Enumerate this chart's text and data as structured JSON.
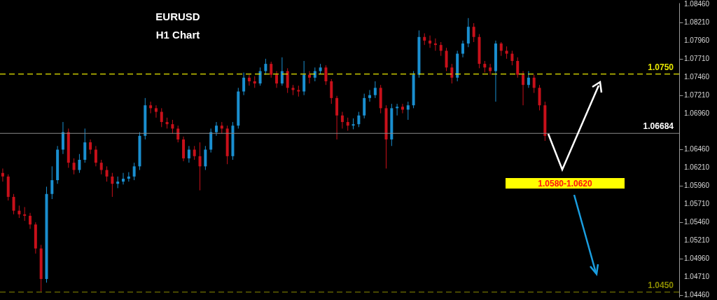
{
  "chart_data": {
    "type": "candlestick",
    "title": "EURUSD",
    "subtitle": "H1 Chart",
    "categories": [
      null,
      null,
      null,
      null,
      null,
      null,
      null,
      null,
      null,
      null,
      null,
      null,
      null,
      null,
      null,
      null,
      null,
      null,
      null,
      null,
      null,
      null,
      null,
      null,
      null,
      null,
      null,
      null,
      null,
      null,
      null,
      null,
      null,
      null,
      null,
      null,
      null,
      null,
      null,
      null,
      null,
      null,
      null,
      null,
      null,
      null,
      null,
      null,
      null,
      null,
      null,
      null,
      null,
      null,
      null,
      null,
      null,
      null,
      null,
      null,
      null,
      null,
      null,
      null,
      null,
      null,
      null,
      null,
      null,
      null,
      null,
      null,
      null,
      null,
      null,
      null,
      null,
      null,
      null,
      null,
      null,
      null,
      null,
      null,
      null,
      null,
      null,
      null,
      null,
      null,
      null,
      null,
      null,
      null,
      null,
      null,
      null,
      null,
      null,
      null,
      null,
      null,
      null,
      null,
      null,
      null,
      null,
      null,
      null,
      null,
      null,
      null,
      null,
      null,
      null,
      null,
      null,
      null,
      null,
      null,
      null,
      null,
      null,
      null
    ],
    "ohlc": [
      [
        1.0614,
        1.062,
        1.0602,
        1.0609
      ],
      [
        1.0609,
        1.0612,
        1.0576,
        1.0581
      ],
      [
        1.0581,
        1.0585,
        1.0557,
        1.0562
      ],
      [
        1.0562,
        1.0569,
        1.0552,
        1.0557
      ],
      [
        1.0557,
        1.0567,
        1.0548,
        1.0555
      ],
      [
        1.0555,
        1.0559,
        1.0537,
        1.0543
      ],
      [
        1.0543,
        1.0546,
        1.0503,
        1.051
      ],
      [
        1.051,
        1.0515,
        1.0451,
        1.0468
      ],
      [
        1.0468,
        1.0595,
        1.0463,
        1.0585
      ],
      [
        1.0585,
        1.0623,
        1.0578,
        1.0604
      ],
      [
        1.0604,
        1.0651,
        1.0599,
        1.0646
      ],
      [
        1.0646,
        1.0684,
        1.064,
        1.067
      ],
      [
        1.067,
        1.0675,
        1.0621,
        1.0628
      ],
      [
        1.0628,
        1.0634,
        1.0612,
        1.0618
      ],
      [
        1.0618,
        1.064,
        1.0614,
        1.0632
      ],
      [
        1.0632,
        1.0675,
        1.0628,
        1.0656
      ],
      [
        1.0656,
        1.066,
        1.064,
        1.0646
      ],
      [
        1.0646,
        1.0651,
        1.0623,
        1.0628
      ],
      [
        1.0628,
        1.0632,
        1.0612,
        1.0618
      ],
      [
        1.0618,
        1.0623,
        1.0602,
        1.0609
      ],
      [
        1.0609,
        1.0614,
        1.0581,
        1.0599
      ],
      [
        1.0599,
        1.0609,
        1.0593,
        1.0602
      ],
      [
        1.0602,
        1.0614,
        1.0598,
        1.0606
      ],
      [
        1.0606,
        1.0615,
        1.0602,
        1.0609
      ],
      [
        1.0609,
        1.0628,
        1.0604,
        1.0623
      ],
      [
        1.0623,
        1.067,
        1.0618,
        1.0665
      ],
      [
        1.0665,
        1.0717,
        1.066,
        1.0707
      ],
      [
        1.0707,
        1.0712,
        1.0696,
        1.0703
      ],
      [
        1.0703,
        1.0707,
        1.069,
        1.0698
      ],
      [
        1.0698,
        1.0703,
        1.0677,
        1.0684
      ],
      [
        1.0684,
        1.069,
        1.0675,
        1.0681
      ],
      [
        1.0681,
        1.0687,
        1.0668,
        1.0675
      ],
      [
        1.0675,
        1.0679,
        1.0656,
        1.066
      ],
      [
        1.066,
        1.0664,
        1.063,
        1.0634
      ],
      [
        1.0634,
        1.0651,
        1.0628,
        1.0646
      ],
      [
        1.0646,
        1.0651,
        1.0632,
        1.0637
      ],
      [
        1.0637,
        1.0656,
        1.059,
        1.0623
      ],
      [
        1.0623,
        1.0651,
        1.0618,
        1.0646
      ],
      [
        1.0646,
        1.0675,
        1.0642,
        1.067
      ],
      [
        1.067,
        1.0684,
        1.0665,
        1.0679
      ],
      [
        1.0679,
        1.0684,
        1.0668,
        1.0675
      ],
      [
        1.0675,
        1.0679,
        1.0626,
        1.0637
      ],
      [
        1.0637,
        1.0684,
        1.0632,
        1.0679
      ],
      [
        1.0679,
        1.0731,
        1.0675,
        1.0726
      ],
      [
        1.0726,
        1.0752,
        1.0721,
        1.0745
      ],
      [
        1.0745,
        1.0749,
        1.0734,
        1.074
      ],
      [
        1.074,
        1.0747,
        1.0731,
        1.0737
      ],
      [
        1.0737,
        1.0759,
        1.0734,
        1.0754
      ],
      [
        1.0754,
        1.0771,
        1.0749,
        1.0764
      ],
      [
        1.0764,
        1.0767,
        1.0745,
        1.0749
      ],
      [
        1.0749,
        1.0754,
        1.0731,
        1.0737
      ],
      [
        1.0737,
        1.0773,
        1.0734,
        1.0754
      ],
      [
        1.0754,
        1.0758,
        1.0724,
        1.0731
      ],
      [
        1.0731,
        1.0735,
        1.0721,
        1.0728
      ],
      [
        1.0728,
        1.0734,
        1.0719,
        1.0726
      ],
      [
        1.0726,
        1.0768,
        1.0721,
        1.0749
      ],
      [
        1.0749,
        1.0754,
        1.0737,
        1.0745
      ],
      [
        1.0745,
        1.0759,
        1.074,
        1.0754
      ],
      [
        1.0754,
        1.0764,
        1.075,
        1.0759
      ],
      [
        1.0759,
        1.0762,
        1.0735,
        1.074
      ],
      [
        1.074,
        1.0743,
        1.0709,
        1.0717
      ],
      [
        1.0717,
        1.072,
        1.066,
        1.0693
      ],
      [
        1.0693,
        1.0698,
        1.0675,
        1.0684
      ],
      [
        1.0684,
        1.069,
        1.0672,
        1.0679
      ],
      [
        1.0679,
        1.0689,
        1.0674,
        1.0681
      ],
      [
        1.0681,
        1.0698,
        1.0677,
        1.0693
      ],
      [
        1.0693,
        1.0723,
        1.0689,
        1.0717
      ],
      [
        1.0717,
        1.0728,
        1.0712,
        1.0721
      ],
      [
        1.0721,
        1.074,
        1.0717,
        1.0731
      ],
      [
        1.0731,
        1.0735,
        1.0696,
        1.0703
      ],
      [
        1.0703,
        1.0707,
        1.062,
        1.066
      ],
      [
        1.066,
        1.0709,
        1.0651,
        1.0703
      ],
      [
        1.0703,
        1.0709,
        1.0693,
        1.0705
      ],
      [
        1.0705,
        1.0709,
        1.0696,
        1.0701
      ],
      [
        1.0701,
        1.0712,
        1.0687,
        1.0707
      ],
      [
        1.0707,
        1.0754,
        1.0703,
        1.0749
      ],
      [
        1.0749,
        1.081,
        1.0745,
        1.0801
      ],
      [
        1.0801,
        1.0806,
        1.079,
        1.0796
      ],
      [
        1.0796,
        1.0803,
        1.0786,
        1.0792
      ],
      [
        1.0792,
        1.0799,
        1.0782,
        1.079
      ],
      [
        1.079,
        1.0794,
        1.0775,
        1.0782
      ],
      [
        1.0782,
        1.0786,
        1.0754,
        1.0759
      ],
      [
        1.0759,
        1.0764,
        1.0737,
        1.0745
      ],
      [
        1.0745,
        1.0782,
        1.074,
        1.0778
      ],
      [
        1.0778,
        1.0796,
        1.0773,
        1.0792
      ],
      [
        1.0792,
        1.0827,
        1.0787,
        1.0815
      ],
      [
        1.0815,
        1.082,
        1.0794,
        1.0801
      ],
      [
        1.0801,
        1.0805,
        1.0758,
        1.0764
      ],
      [
        1.0764,
        1.0768,
        1.0752,
        1.0759
      ],
      [
        1.0759,
        1.0764,
        1.0749,
        1.0754
      ],
      [
        1.0754,
        1.0796,
        1.0712,
        1.0792
      ],
      [
        1.0792,
        1.0794,
        1.0775,
        1.0782
      ],
      [
        1.0782,
        1.0788,
        1.0771,
        1.0778
      ],
      [
        1.0778,
        1.0782,
        1.0762,
        1.0768
      ],
      [
        1.0768,
        1.0773,
        1.0745,
        1.0749
      ],
      [
        1.0749,
        1.0754,
        1.0707,
        1.0735
      ],
      [
        1.0735,
        1.0754,
        1.0731,
        1.0745
      ],
      [
        1.0745,
        1.0749,
        1.0724,
        1.0731
      ],
      [
        1.0731,
        1.0735,
        1.07,
        1.0707
      ],
      [
        1.0707,
        1.0712,
        1.0658,
        1.0665
      ],
      null,
      null,
      null,
      null,
      null,
      null,
      null,
      null,
      null,
      null,
      null,
      null,
      null,
      null,
      null,
      null,
      null,
      null,
      null,
      null,
      null,
      null,
      null,
      null
    ],
    "colors": [
      "#c8101a",
      "#c8101a",
      "#c8101a",
      "#c8101a",
      "#c8101a",
      "#c8101a",
      "#c8101a",
      "#c8101a",
      "#1a8fd0",
      "#1a8fd0",
      "#1a8fd0",
      "#1a8fd0",
      "#c8101a",
      "#c8101a",
      "#1a8fd0",
      "#1a8fd0",
      "#c8101a",
      "#c8101a",
      "#c8101a",
      "#c8101a",
      "#c8101a",
      "#1a8fd0",
      "#1a8fd0",
      "#1a8fd0",
      "#1a8fd0",
      "#1a8fd0",
      "#1a8fd0",
      "#c8101a",
      "#c8101a",
      "#c8101a",
      "#c8101a",
      "#c8101a",
      "#c8101a",
      "#c8101a",
      "#1a8fd0",
      "#c8101a",
      "#c8101a",
      "#1a8fd0",
      "#1a8fd0",
      "#1a8fd0",
      "#c8101a",
      "#c8101a",
      "#1a8fd0",
      "#1a8fd0",
      "#1a8fd0",
      "#c8101a",
      "#c8101a",
      "#1a8fd0",
      "#1a8fd0",
      "#c8101a",
      "#c8101a",
      "#1a8fd0",
      "#c8101a",
      "#c8101a",
      "#c8101a",
      "#1a8fd0",
      "#c8101a",
      "#1a8fd0",
      "#1a8fd0",
      "#c8101a",
      "#c8101a",
      "#c8101a",
      "#c8101a",
      "#c8101a",
      "#1a8fd0",
      "#1a8fd0",
      "#1a8fd0",
      "#1a8fd0",
      "#1a8fd0",
      "#c8101a",
      "#c8101a",
      "#1a8fd0",
      "#1a8fd0",
      "#c8101a",
      "#1a8fd0",
      "#1a8fd0",
      "#1a8fd0",
      "#c8101a",
      "#c8101a",
      "#c8101a",
      "#c8101a",
      "#c8101a",
      "#c8101a",
      "#1a8fd0",
      "#1a8fd0",
      "#1a8fd0",
      "#c8101a",
      "#c8101a",
      "#c8101a",
      "#c8101a",
      "#1a8fd0",
      "#c8101a",
      "#c8101a",
      "#c8101a",
      "#c8101a",
      "#c8101a",
      "#1a8fd0",
      "#c8101a",
      "#c8101a",
      "#c8101a",
      null,
      null,
      null,
      null,
      null,
      null,
      null,
      null,
      null,
      null,
      null,
      null,
      null,
      null,
      null,
      null,
      null,
      null,
      null,
      null,
      null,
      null,
      null,
      null
    ],
    "ylim": [
      1.0443,
      1.0848
    ],
    "yticks": [
      {
        "value": 1.0446,
        "label": "1.04460"
      },
      {
        "value": 1.0471,
        "label": "1.04710"
      },
      {
        "value": 1.0496,
        "label": "1.04960"
      },
      {
        "value": 1.0521,
        "label": "1.05210"
      },
      {
        "value": 1.0546,
        "label": "1.05460"
      },
      {
        "value": 1.0571,
        "label": "1.05710"
      },
      {
        "value": 1.0596,
        "label": "1.05960"
      },
      {
        "value": 1.0621,
        "label": "1.06210"
      },
      {
        "value": 1.0646,
        "label": "1.06460"
      },
      {
        "value": 1.0696,
        "label": "1.06960"
      },
      {
        "value": 1.0721,
        "label": "1.07210"
      },
      {
        "value": 1.0746,
        "label": "1.07460"
      },
      {
        "value": 1.0771,
        "label": "1.07710"
      },
      {
        "value": 1.0796,
        "label": "1.07960"
      },
      {
        "value": 1.0821,
        "label": "1.08210"
      },
      {
        "value": 1.0846,
        "label": "1.08460"
      }
    ],
    "ref_lines": [
      {
        "axis": "y",
        "value": 1.075,
        "label": "1.0750",
        "color": "#e6e600",
        "line_style": "dashed"
      },
      {
        "axis": "y",
        "value": 1.045,
        "label": "1.0450",
        "color": "#8c8c00",
        "line_style": "dashed"
      },
      {
        "axis": "y",
        "value": 1.06684,
        "label": "1.06684",
        "color": "#8a8a8a",
        "line_style": "solid"
      }
    ],
    "annotations": [
      "1.0580-1.0620"
    ]
  }
}
